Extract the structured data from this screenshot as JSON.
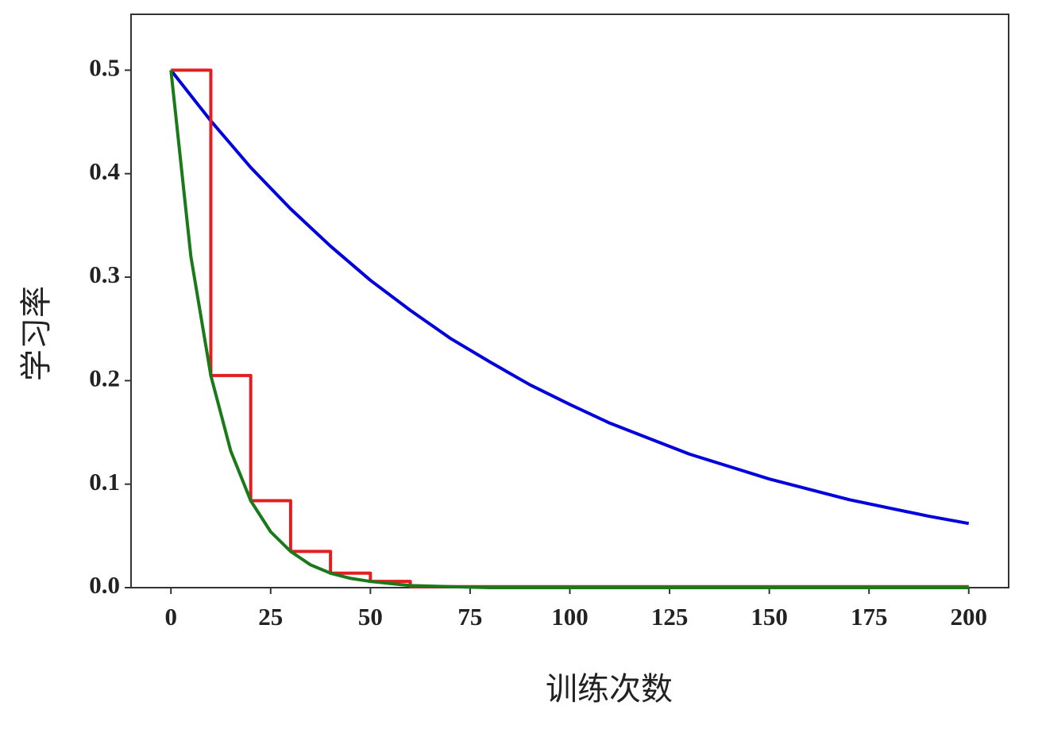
{
  "chart_data": {
    "type": "line",
    "xlabel": "训练次数",
    "ylabel": "学习率",
    "xlim": [
      -10,
      210
    ],
    "ylim": [
      0,
      0.554
    ],
    "xticks": [
      0,
      25,
      50,
      75,
      100,
      125,
      150,
      175,
      200
    ],
    "yticks": [
      {
        "value": 0,
        "label": "0.0"
      },
      0.1,
      0.2,
      0.3,
      0.4,
      0.5
    ],
    "series": [
      {
        "color": "#0000dd",
        "x": [
          0,
          10,
          20,
          30,
          40,
          50,
          60,
          70,
          80,
          90,
          100,
          110,
          120,
          130,
          140,
          150,
          160,
          170,
          180,
          190,
          200
        ],
        "values": [
          0.5,
          0.451,
          0.406,
          0.366,
          0.33,
          0.297,
          0.268,
          0.241,
          0.218,
          0.196,
          0.177,
          0.159,
          0.144,
          0.129,
          0.117,
          0.105,
          0.095,
          0.085,
          0.077,
          0.069,
          0.062
        ]
      },
      {
        "color": "#e02020",
        "x": [
          0,
          10,
          10,
          20,
          20,
          30,
          30,
          40,
          40,
          50,
          50,
          60,
          60,
          200
        ],
        "values": [
          0.5,
          0.5,
          0.205,
          0.205,
          0.084,
          0.084,
          0.035,
          0.035,
          0.014,
          0.014,
          0.006,
          0.006,
          0.001,
          0.001
        ]
      },
      {
        "color": "#1a7a1a",
        "x": [
          0,
          5,
          10,
          15,
          20,
          25,
          30,
          35,
          40,
          45,
          50,
          60,
          70,
          80,
          100,
          150,
          200
        ],
        "values": [
          0.5,
          0.32,
          0.205,
          0.132,
          0.084,
          0.054,
          0.035,
          0.022,
          0.014,
          0.009,
          0.006,
          0.002,
          0.001,
          0,
          0,
          0,
          0
        ]
      }
    ]
  }
}
